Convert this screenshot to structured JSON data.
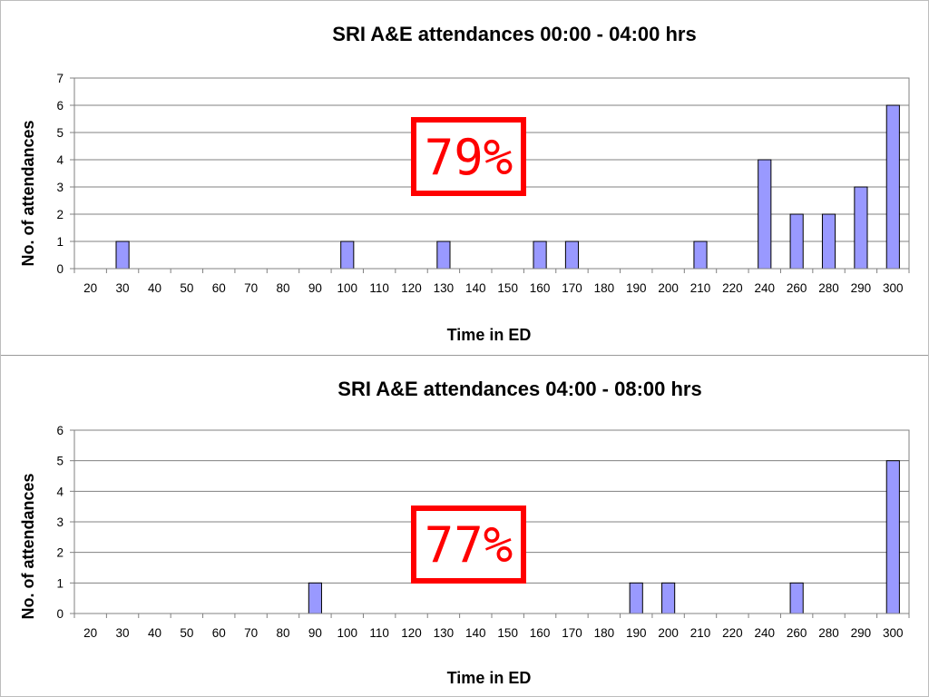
{
  "chart_data": [
    {
      "type": "bar",
      "title": "SRI A&E attendances 00:00 - 04:00 hrs",
      "xlabel": "Time in ED",
      "ylabel": "No. of attendances",
      "ylim": [
        0,
        7
      ],
      "yticks": [
        0,
        1,
        2,
        3,
        4,
        5,
        6,
        7
      ],
      "categories": [
        "20",
        "30",
        "40",
        "50",
        "60",
        "70",
        "80",
        "90",
        "100",
        "110",
        "120",
        "130",
        "140",
        "150",
        "160",
        "170",
        "180",
        "190",
        "200",
        "210",
        "220",
        "240",
        "260",
        "280",
        "290",
        "300"
      ],
      "values": [
        0,
        1,
        0,
        0,
        0,
        0,
        0,
        0,
        1,
        0,
        0,
        1,
        0,
        0,
        1,
        1,
        0,
        0,
        0,
        1,
        0,
        4,
        2,
        2,
        3,
        6
      ],
      "grid": true,
      "bar_color": "#9999ff",
      "callout": {
        "text": "79%",
        "color": "#ff0000"
      }
    },
    {
      "type": "bar",
      "title": "SRI A&E attendances 04:00 - 08:00 hrs",
      "xlabel": "Time in ED",
      "ylabel": "No. of attendances",
      "ylim": [
        0,
        6
      ],
      "yticks": [
        0,
        1,
        2,
        3,
        4,
        5,
        6
      ],
      "categories": [
        "20",
        "30",
        "40",
        "50",
        "60",
        "70",
        "80",
        "90",
        "100",
        "110",
        "120",
        "130",
        "140",
        "150",
        "160",
        "170",
        "180",
        "190",
        "200",
        "210",
        "220",
        "240",
        "260",
        "280",
        "290",
        "300"
      ],
      "values": [
        0,
        0,
        0,
        0,
        0,
        0,
        0,
        1,
        0,
        0,
        0,
        0,
        0,
        0,
        0,
        0,
        0,
        1,
        1,
        0,
        0,
        0,
        1,
        0,
        0,
        5
      ],
      "grid": true,
      "bar_color": "#9999ff",
      "callout": {
        "text": "77%",
        "color": "#ff0000"
      }
    }
  ]
}
